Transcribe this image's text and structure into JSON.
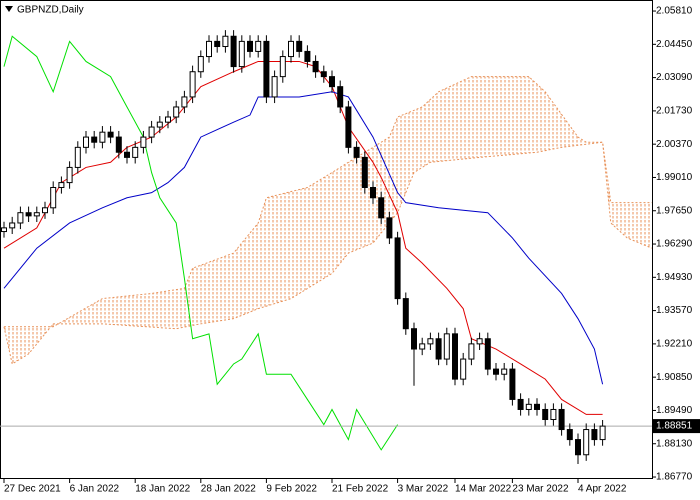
{
  "chart_data": {
    "type": "candlestick",
    "title": "GBPNZD,Daily",
    "categories": [
      "27 Dec 2021",
      null,
      null,
      null,
      null,
      null,
      null,
      null,
      "6 Jan 2022",
      null,
      null,
      null,
      null,
      null,
      null,
      null,
      "18 Jan 2022",
      null,
      null,
      null,
      null,
      null,
      null,
      null,
      "28 Jan 2022",
      null,
      null,
      null,
      null,
      null,
      null,
      null,
      "9 Feb 2022",
      null,
      null,
      null,
      null,
      null,
      null,
      null,
      "21 Feb 2022",
      null,
      null,
      null,
      null,
      null,
      null,
      null,
      "3 Mar 2022",
      null,
      null,
      null,
      null,
      null,
      null,
      "14 Mar 2022",
      null,
      null,
      null,
      null,
      null,
      null,
      "23 Mar 2022",
      null,
      null,
      null,
      null,
      null,
      null,
      null,
      "4 Apr 2022",
      null,
      null,
      null,
      null,
      null,
      null,
      null,
      null,
      null
    ],
    "open": [
      1.968,
      1.9695,
      1.9715,
      1.9757,
      1.9744,
      1.9757,
      1.9777,
      1.986,
      1.988,
      1.9942,
      2.0024,
      2.0066,
      2.0045,
      2.0086,
      2.0066,
      2.0004,
      1.9983,
      2.0024,
      2.0066,
      2.0107,
      2.0127,
      2.0148,
      2.0189,
      2.023,
      2.0333,
      2.0395,
      2.0457,
      2.0436,
      2.0478,
      2.0354,
      2.0457,
      2.0416,
      2.0457,
      2.023,
      2.0313,
      2.0395,
      2.0457,
      2.0416,
      2.0375,
      2.0333,
      2.0313,
      2.0272,
      2.0189,
      2.0024,
      1.9983,
      1.986,
      1.9818,
      1.9736,
      1.9654,
      1.9406,
      1.9283,
      1.92,
      1.9221,
      1.9242,
      1.9159,
      1.9262,
      1.9077,
      1.9159,
      1.9221,
      1.9242,
      1.9118,
      1.9097,
      1.9118,
      1.8994,
      1.8953,
      1.8974,
      1.8953,
      1.8912,
      1.8953,
      1.8871,
      1.883,
      1.8768,
      1.8871,
      1.883,
      null,
      null,
      null,
      null,
      null,
      null
    ],
    "high": [
      1.972,
      1.974,
      1.9782,
      1.9782,
      1.9782,
      1.9802,
      1.9885,
      1.9905,
      1.9967,
      2.0049,
      2.0091,
      2.0091,
      2.0111,
      2.0111,
      2.0091,
      2.0029,
      2.0049,
      2.0091,
      2.0132,
      2.0152,
      2.0173,
      2.0214,
      2.0255,
      2.0358,
      2.042,
      2.0482,
      2.0482,
      2.0503,
      2.0503,
      2.0482,
      2.0482,
      2.0482,
      2.0482,
      2.0338,
      2.042,
      2.0482,
      2.0482,
      2.0441,
      2.04,
      2.0358,
      2.0338,
      2.0297,
      2.0214,
      2.0049,
      2.0008,
      1.9885,
      1.9843,
      1.9761,
      1.9679,
      1.9431,
      1.9308,
      1.9246,
      1.9267,
      1.9267,
      1.9287,
      1.9287,
      1.9184,
      1.9246,
      1.9267,
      1.9267,
      1.9143,
      1.9143,
      1.9143,
      1.9019,
      1.8999,
      1.8999,
      1.8978,
      1.8978,
      1.8978,
      1.8896,
      1.8855,
      1.8896,
      1.8896,
      1.891,
      null,
      null,
      null,
      null,
      null,
      null
    ],
    "low": [
      1.9655,
      1.967,
      1.969,
      1.9719,
      1.9719,
      1.9732,
      1.9752,
      1.9835,
      1.9855,
      1.9917,
      1.9999,
      2.002,
      2.002,
      2.0041,
      1.9979,
      1.9958,
      1.9958,
      1.9999,
      2.0041,
      2.0082,
      2.0102,
      2.0123,
      2.0164,
      2.0205,
      2.0308,
      2.037,
      2.0411,
      2.0411,
      2.0329,
      2.0329,
      2.0391,
      2.0391,
      2.0205,
      2.0205,
      2.0288,
      2.037,
      2.0391,
      2.035,
      2.0308,
      2.0288,
      2.0247,
      2.0164,
      1.9999,
      1.9958,
      1.9835,
      1.9793,
      1.9711,
      1.9629,
      1.9381,
      1.9258,
      1.905,
      1.9175,
      1.9196,
      1.9134,
      1.9134,
      1.9052,
      1.9052,
      1.9134,
      1.9196,
      1.9093,
      1.9072,
      1.9072,
      1.8969,
      1.8928,
      1.8928,
      1.8928,
      1.8887,
      1.8887,
      1.8846,
      1.8805,
      1.873,
      1.8743,
      1.8805,
      1.8805,
      null,
      null,
      null,
      null,
      null,
      null
    ],
    "close": [
      1.9695,
      1.9715,
      1.9757,
      1.9744,
      1.9757,
      1.9777,
      1.986,
      1.988,
      1.9942,
      2.0024,
      2.0066,
      2.0045,
      2.0086,
      2.0066,
      2.0004,
      1.9983,
      2.0024,
      2.0066,
      2.0107,
      2.0127,
      2.0148,
      2.0189,
      2.023,
      2.0333,
      2.0395,
      2.0457,
      2.0436,
      2.0478,
      2.0354,
      2.0457,
      2.0416,
      2.0457,
      2.023,
      2.0313,
      2.0395,
      2.0457,
      2.0416,
      2.0375,
      2.0333,
      2.0313,
      2.0272,
      2.0189,
      2.0024,
      1.9983,
      1.986,
      1.9818,
      1.9736,
      1.9654,
      1.9406,
      1.9283,
      1.92,
      1.9221,
      1.9242,
      1.9159,
      1.9262,
      1.9077,
      1.9159,
      1.9221,
      1.9242,
      1.9118,
      1.9097,
      1.9118,
      1.8994,
      1.8953,
      1.8974,
      1.8953,
      1.8912,
      1.8953,
      1.8871,
      1.883,
      1.8768,
      1.8871,
      1.883,
      1.8885,
      null,
      null,
      null,
      null,
      null,
      null
    ],
    "lines": [
      {
        "color": "#e00000",
        "x": [
          0,
          4,
          7,
          10,
          13,
          15,
          18,
          21,
          24,
          28,
          31,
          36,
          38,
          40,
          42,
          45,
          46,
          48,
          49,
          51,
          54,
          56,
          57,
          60,
          63,
          66,
          68,
          71,
          73
        ],
        "values": [
          1.9612,
          1.9695,
          1.988,
          1.9942,
          1.9963,
          2.0024,
          2.0066,
          2.0148,
          2.0272,
          2.0333,
          2.0375,
          2.0375,
          2.0354,
          2.0272,
          2.0107,
          1.9963,
          1.9901,
          1.9757,
          1.9612,
          1.9551,
          1.9448,
          1.9365,
          1.9242,
          1.92,
          1.9139,
          1.9077,
          1.8994,
          1.8933,
          1.8933
        ]
      },
      {
        "color": "#0000c8",
        "x": [
          0,
          4,
          8,
          12,
          15,
          18,
          20,
          22,
          24,
          28,
          30,
          31,
          36,
          40,
          42,
          45,
          48,
          49,
          53,
          59,
          62,
          64,
          68,
          70,
          72,
          73
        ],
        "values": [
          1.9448,
          1.9612,
          1.9715,
          1.9777,
          1.9818,
          1.9839,
          1.988,
          1.9942,
          2.0066,
          2.0127,
          2.0156,
          2.023,
          2.023,
          2.0251,
          2.023,
          2.0066,
          1.9839,
          1.9798,
          1.9777,
          1.9757,
          1.9654,
          1.9571,
          1.9427,
          1.9324,
          1.92,
          1.9056
        ]
      },
      {
        "color": "#00e000",
        "x": [
          0,
          1,
          4,
          6,
          8,
          10,
          13,
          15,
          17,
          18,
          19,
          21,
          22,
          23,
          25,
          26,
          28,
          29,
          31,
          32,
          35,
          37,
          39,
          40,
          42,
          43,
          46,
          48
        ],
        "values": [
          2.0354,
          2.0478,
          2.0395,
          2.0251,
          2.0457,
          2.0375,
          2.0313,
          2.0189,
          2.0066,
          1.9921,
          1.9818,
          1.9715,
          1.9489,
          1.9242,
          1.9262,
          1.9056,
          1.9139,
          1.9159,
          1.9262,
          1.9097,
          1.9097,
          1.8994,
          1.8891,
          1.8953,
          1.883,
          1.8953,
          1.8788,
          1.8891
        ]
      }
    ],
    "cloud": {
      "color": "#e8925a",
      "span_a": {
        "x": [
          0,
          6,
          12,
          18,
          22,
          23,
          28,
          31,
          32,
          37,
          40,
          42,
          45,
          47,
          48,
          51,
          53,
          57,
          64,
          66,
          70,
          71,
          73,
          74,
          79
        ],
        "values": [
          1.9291,
          1.9291,
          1.9406,
          1.9427,
          1.9448,
          1.953,
          1.9592,
          1.9715,
          1.9818,
          1.986,
          1.9921,
          1.9963,
          2.0024,
          2.0066,
          2.0148,
          2.0189,
          2.0251,
          2.0313,
          2.0313,
          2.0251,
          2.0066,
          2.0045,
          2.0045,
          1.9798,
          1.9798
        ]
      },
      "span_b": {
        "x": [
          0,
          1,
          3,
          6,
          12,
          21,
          24,
          28,
          31,
          35,
          40,
          42,
          45,
          48,
          50,
          52,
          58,
          65,
          68,
          73,
          74,
          76,
          79
        ],
        "values": [
          1.9291,
          1.9139,
          1.918,
          1.9303,
          1.9303,
          1.9283,
          1.9303,
          1.9324,
          1.9365,
          1.9406,
          1.9509,
          1.9592,
          1.9633,
          1.9757,
          1.9921,
          1.9963,
          1.9983,
          2.0004,
          2.0024,
          2.0045,
          1.9715,
          1.9654,
          1.9612
        ]
      }
    },
    "current_price": 1.88851,
    "ylim": [
      1.8673,
      2.0622
    ],
    "yticks": [
      {
        "value": 2.0581,
        "label": "2.05810"
      },
      {
        "value": 2.0445,
        "label": "2.04450"
      },
      {
        "value": 2.0309,
        "label": "2.03090"
      },
      {
        "value": 2.0173,
        "label": "2.01730"
      },
      {
        "value": 2.0037,
        "label": "2.00370"
      },
      {
        "value": 1.9901,
        "label": "1.99010"
      },
      {
        "value": 1.9765,
        "label": "1.97650"
      },
      {
        "value": 1.9629,
        "label": "1.96290"
      },
      {
        "value": 1.9493,
        "label": "1.94930"
      },
      {
        "value": 1.9357,
        "label": "1.93570"
      },
      {
        "value": 1.9221,
        "label": "1.92210"
      },
      {
        "value": 1.9085,
        "label": "1.90850"
      },
      {
        "value": 1.8949,
        "label": "1.89490"
      },
      {
        "value": 1.8813,
        "label": "1.88130"
      },
      {
        "value": 1.8677,
        "label": "1.86770"
      }
    ]
  }
}
